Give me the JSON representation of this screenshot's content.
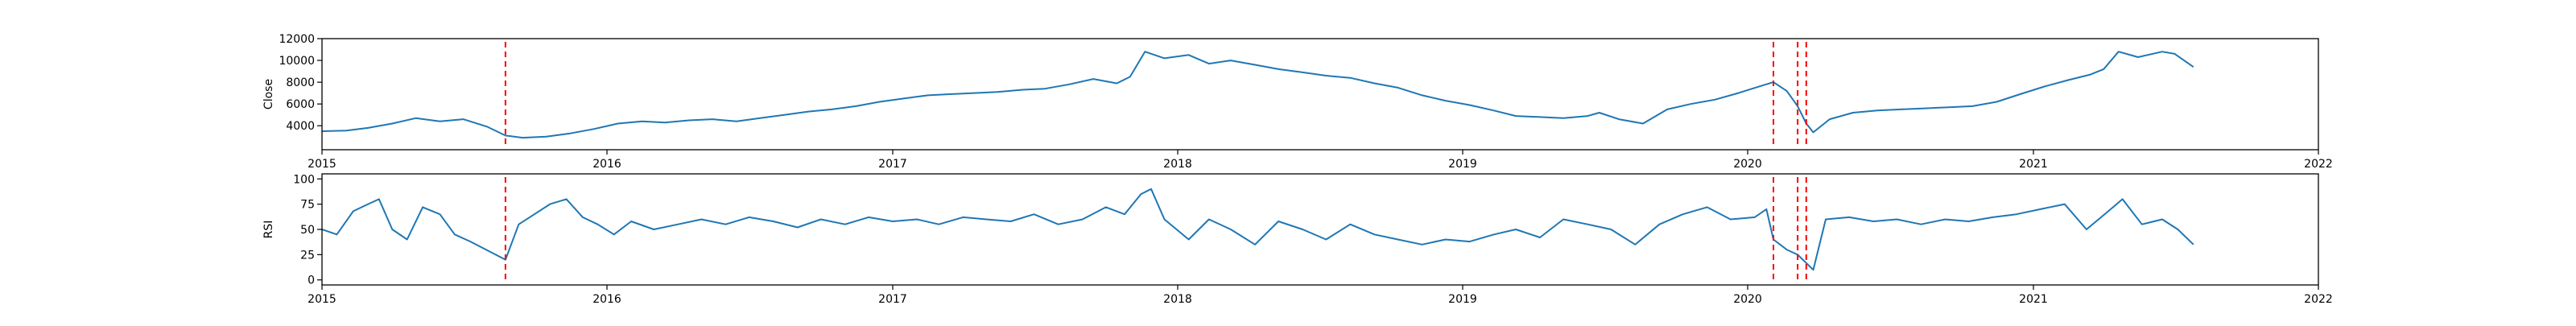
{
  "chart_data": [
    {
      "type": "line",
      "ylabel": "Close",
      "xlim": [
        "2015-01-01",
        "2022-01-01"
      ],
      "ylim": [
        1800,
        12000
      ],
      "yticks": [
        4000,
        6000,
        8000,
        10000,
        12000
      ],
      "ytick_labels": [
        "4000",
        "6000",
        "8000",
        "10000",
        "12000"
      ],
      "xticks": [
        "2015-01-01",
        "2016-01-01",
        "2017-01-01",
        "2018-01-01",
        "2019-01-01",
        "2020-01-01",
        "2021-01-01",
        "2022-01-01"
      ],
      "xtick_labels": [
        "2015",
        "2016",
        "2017",
        "2018",
        "2019",
        "2020",
        "2021",
        "2022"
      ],
      "grid": false,
      "line_color": "#1f77b4",
      "series": [
        {
          "x": [
            "2015-01-01",
            "2015-02-01",
            "2015-03-01",
            "2015-04-01",
            "2015-05-01",
            "2015-06-01",
            "2015-07-01",
            "2015-08-01",
            "2015-08-24",
            "2015-09-15",
            "2015-10-15",
            "2015-11-15",
            "2015-12-15",
            "2016-01-15",
            "2016-02-15",
            "2016-03-15",
            "2016-04-15",
            "2016-05-15",
            "2016-06-15",
            "2016-07-15",
            "2016-08-15",
            "2016-09-15",
            "2016-10-15",
            "2016-11-15",
            "2016-12-15",
            "2017-01-15",
            "2017-02-15",
            "2017-03-15",
            "2017-04-15",
            "2017-05-15",
            "2017-06-15",
            "2017-07-15",
            "2017-08-15",
            "2017-09-15",
            "2017-10-15",
            "2017-11-01",
            "2017-11-20",
            "2017-12-15",
            "2018-01-15",
            "2018-02-10",
            "2018-03-10",
            "2018-04-10",
            "2018-05-10",
            "2018-06-10",
            "2018-07-10",
            "2018-08-10",
            "2018-09-10",
            "2018-10-10",
            "2018-11-10",
            "2018-12-10",
            "2019-01-10",
            "2019-02-10",
            "2019-03-10",
            "2019-04-10",
            "2019-05-10",
            "2019-06-10",
            "2019-06-25",
            "2019-07-20",
            "2019-08-20",
            "2019-09-20",
            "2019-10-20",
            "2019-11-20",
            "2019-12-20",
            "2020-01-20",
            "2020-02-03",
            "2020-02-20",
            "2020-03-05",
            "2020-03-16",
            "2020-03-25",
            "2020-04-15",
            "2020-05-15",
            "2020-06-15",
            "2020-07-15",
            "2020-08-15",
            "2020-09-15",
            "2020-10-15",
            "2020-11-15",
            "2020-12-15",
            "2021-01-15",
            "2021-02-15",
            "2021-03-15",
            "2021-04-01",
            "2021-04-20",
            "2021-05-15",
            "2021-06-15",
            "2021-07-01",
            "2021-07-15",
            "2021-07-25"
          ],
          "y": [
            3500,
            3550,
            3800,
            4200,
            4700,
            4400,
            4600,
            3900,
            3100,
            2900,
            3000,
            3300,
            3700,
            4200,
            4400,
            4300,
            4500,
            4600,
            4400,
            4700,
            5000,
            5300,
            5500,
            5800,
            6200,
            6500,
            6800,
            6900,
            7000,
            7100,
            7300,
            7400,
            7800,
            8300,
            7900,
            8500,
            10800,
            10200,
            10500,
            9700,
            10000,
            9600,
            9200,
            8900,
            8600,
            8400,
            7900,
            7500,
            6800,
            6300,
            5900,
            5400,
            4900,
            4800,
            4700,
            4900,
            5200,
            4600,
            4200,
            5500,
            6000,
            6400,
            7000,
            7700,
            8000,
            7200,
            5800,
            4200,
            3400,
            4600,
            5200,
            5400,
            5500,
            5600,
            5700,
            5800,
            6200,
            6900,
            7600,
            8200,
            8700,
            9200,
            10800,
            10300,
            10800,
            10600,
            9900,
            9400
          ]
        }
      ],
      "vlines": [
        "2015-08-24",
        "2020-02-03",
        "2020-03-05",
        "2020-03-16"
      ],
      "vline_color": "#ff0000"
    },
    {
      "type": "line",
      "ylabel": "RSI",
      "xlim": [
        "2015-01-01",
        "2022-01-01"
      ],
      "ylim": [
        -5,
        105
      ],
      "yticks": [
        0,
        25,
        50,
        75,
        100
      ],
      "ytick_labels": [
        "0",
        "25",
        "50",
        "75",
        "100"
      ],
      "xticks": [
        "2015-01-01",
        "2016-01-01",
        "2017-01-01",
        "2018-01-01",
        "2019-01-01",
        "2020-01-01",
        "2021-01-01",
        "2022-01-01"
      ],
      "xtick_labels": [
        "2015",
        "2016",
        "2017",
        "2018",
        "2019",
        "2020",
        "2021",
        "2022"
      ],
      "grid": false,
      "line_color": "#1f77b4",
      "series": [
        {
          "x": [
            "2015-01-01",
            "2015-01-20",
            "2015-02-10",
            "2015-03-01",
            "2015-03-15",
            "2015-04-01",
            "2015-04-20",
            "2015-05-10",
            "2015-06-01",
            "2015-06-20",
            "2015-07-10",
            "2015-07-30",
            "2015-08-24",
            "2015-09-10",
            "2015-09-30",
            "2015-10-20",
            "2015-11-10",
            "2015-12-01",
            "2015-12-20",
            "2016-01-10",
            "2016-02-01",
            "2016-03-01",
            "2016-04-01",
            "2016-05-01",
            "2016-06-01",
            "2016-07-01",
            "2016-08-01",
            "2016-09-01",
            "2016-10-01",
            "2016-11-01",
            "2016-12-01",
            "2017-01-01",
            "2017-02-01",
            "2017-03-01",
            "2017-04-01",
            "2017-05-01",
            "2017-06-01",
            "2017-07-01",
            "2017-08-01",
            "2017-09-01",
            "2017-10-01",
            "2017-10-25",
            "2017-11-15",
            "2017-11-28",
            "2017-12-15",
            "2018-01-15",
            "2018-02-10",
            "2018-03-10",
            "2018-04-10",
            "2018-05-10",
            "2018-06-10",
            "2018-07-10",
            "2018-08-10",
            "2018-09-10",
            "2018-10-10",
            "2018-11-10",
            "2018-12-10",
            "2019-01-10",
            "2019-02-10",
            "2019-03-10",
            "2019-04-10",
            "2019-05-10",
            "2019-06-10",
            "2019-07-10",
            "2019-08-10",
            "2019-09-10",
            "2019-10-10",
            "2019-11-10",
            "2019-12-10",
            "2020-01-10",
            "2020-01-25",
            "2020-02-03",
            "2020-02-20",
            "2020-03-05",
            "2020-03-25",
            "2020-04-10",
            "2020-05-10",
            "2020-06-10",
            "2020-07-10",
            "2020-08-10",
            "2020-09-10",
            "2020-10-10",
            "2020-11-10",
            "2020-12-10",
            "2021-01-10",
            "2021-02-10",
            "2021-03-10",
            "2021-04-10",
            "2021-04-25",
            "2021-05-20",
            "2021-06-15",
            "2021-07-05",
            "2021-07-25"
          ],
          "y": [
            50,
            45,
            68,
            75,
            80,
            50,
            40,
            72,
            65,
            45,
            38,
            30,
            20,
            55,
            65,
            75,
            80,
            62,
            55,
            45,
            58,
            50,
            55,
            60,
            55,
            62,
            58,
            52,
            60,
            55,
            62,
            58,
            60,
            55,
            62,
            60,
            58,
            65,
            55,
            60,
            72,
            65,
            85,
            90,
            60,
            40,
            60,
            50,
            35,
            58,
            50,
            40,
            55,
            45,
            40,
            35,
            40,
            38,
            45,
            50,
            42,
            60,
            55,
            50,
            35,
            55,
            65,
            72,
            60,
            62,
            70,
            40,
            30,
            25,
            10,
            60,
            62,
            58,
            60,
            55,
            60,
            58,
            62,
            65,
            70,
            75,
            50,
            70,
            80,
            55,
            60,
            50,
            35
          ]
        }
      ],
      "vlines": [
        "2015-08-24",
        "2020-02-03",
        "2020-03-05",
        "2020-03-16"
      ],
      "vline_color": "#ff0000"
    }
  ]
}
